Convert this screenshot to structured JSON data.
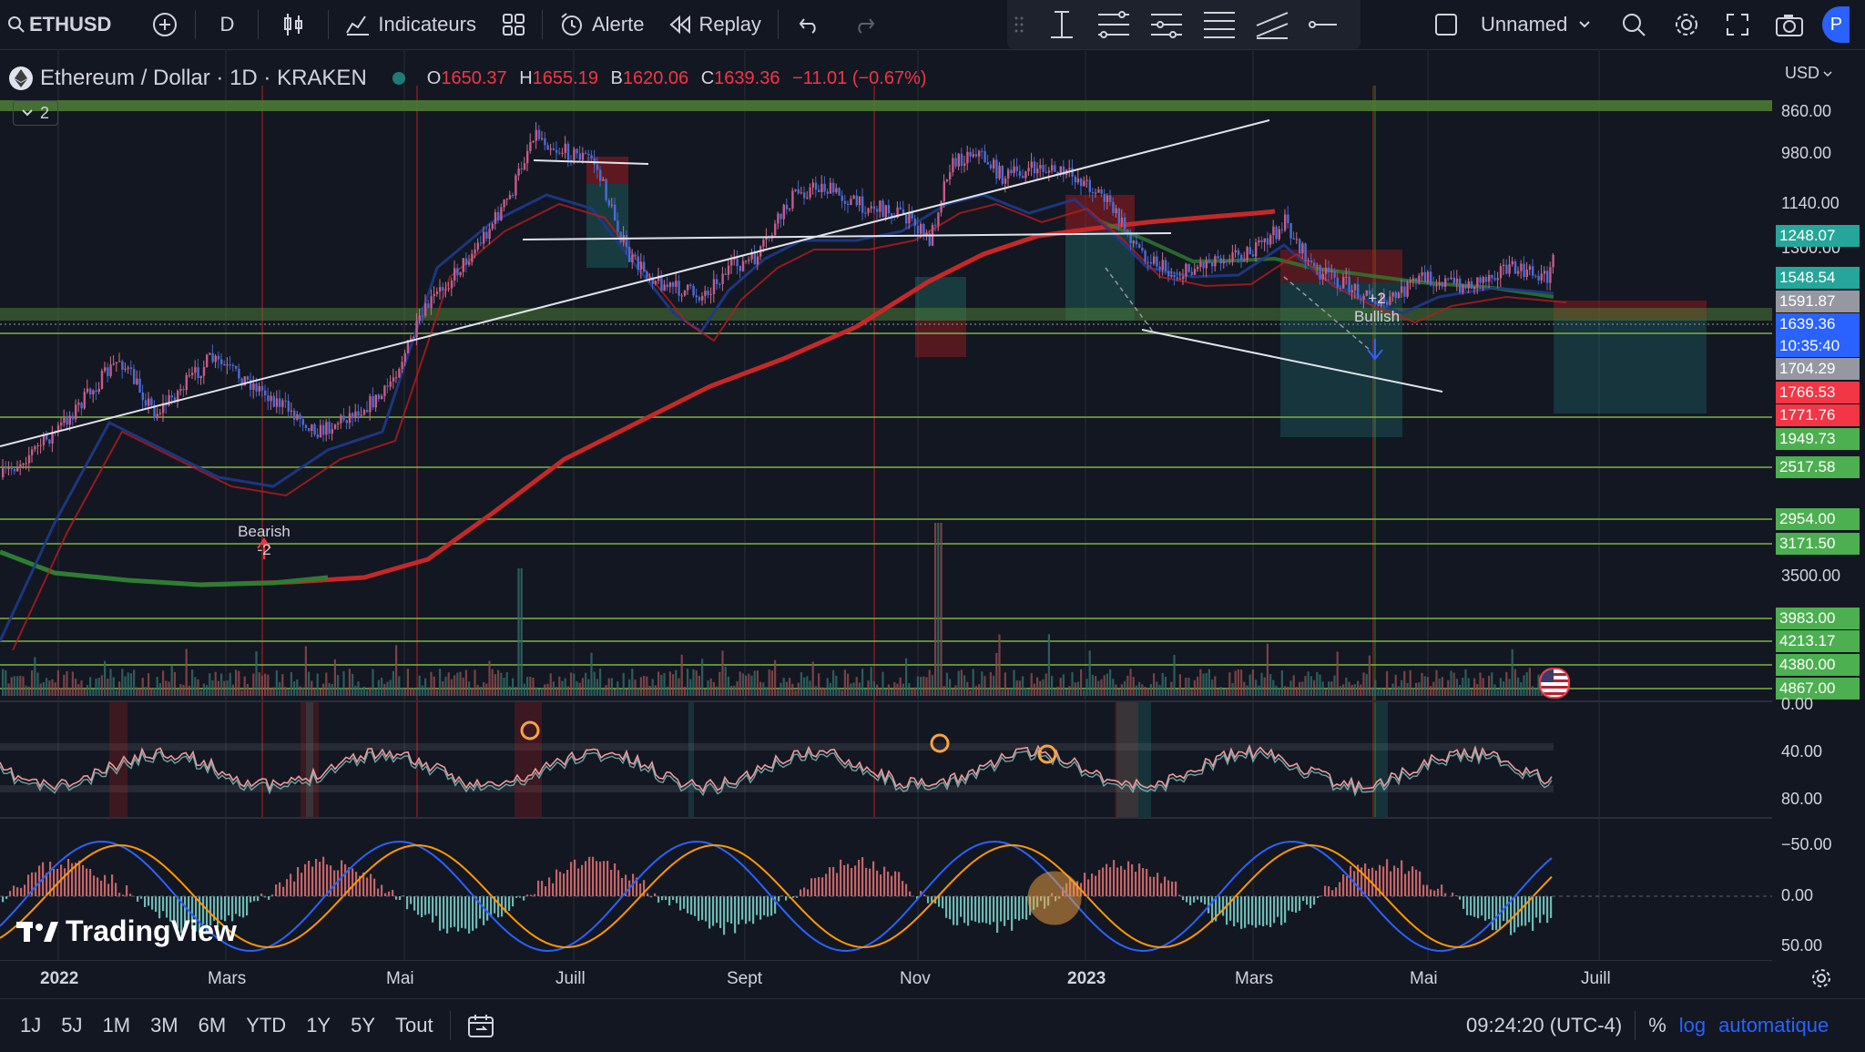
{
  "toolbar": {
    "symbol": "ETHUSD",
    "interval": "D",
    "indicators_label": "Indicateurs",
    "alert_label": "Alerte",
    "replay_label": "Replay",
    "layout_name": "Unnamed",
    "profile_initial": "P"
  },
  "legend": {
    "title": "Ethereum / Dollar · 1D · KRAKEN",
    "o_label": "O",
    "o_val": "1650.37",
    "h_label": "H",
    "h_val": "1655.19",
    "b_label": "B",
    "b_val": "1620.06",
    "c_label": "C",
    "c_val": "1639.36",
    "change": "−11.01 (−0.67%)",
    "collapsed_count": "2"
  },
  "annotations": {
    "bearish_text": "Bearish",
    "bearish_num": "-2",
    "bullish_num": "+2",
    "bullish_text": "Bullish"
  },
  "price_axis": {
    "currency": "USD",
    "plain_labels": [
      "860.00",
      "980.00",
      "1140.00",
      "1300.00",
      "3500.00"
    ],
    "tags": [
      {
        "text": "1248.07",
        "color": "#26a69a"
      },
      {
        "text": "1548.54",
        "color": "#26a69a"
      },
      {
        "text": "1591.87",
        "color": "#9598a1"
      },
      {
        "text": "1639.36",
        "color": "#2962ff"
      },
      {
        "text": "10:35:40",
        "color": "#2962ff"
      },
      {
        "text": "1704.29",
        "color": "#9598a1"
      },
      {
        "text": "1766.53",
        "color": "#f23645"
      },
      {
        "text": "1771.76",
        "color": "#f23645"
      },
      {
        "text": "1949.73",
        "color": "#4caf50"
      },
      {
        "text": "2517.58",
        "color": "#4caf50"
      },
      {
        "text": "2954.00",
        "color": "#4caf50"
      },
      {
        "text": "3171.50",
        "color": "#4caf50"
      },
      {
        "text": "3983.00",
        "color": "#4caf50"
      },
      {
        "text": "4213.17",
        "color": "#4caf50"
      },
      {
        "text": "4380.00",
        "color": "#4caf50"
      },
      {
        "text": "4867.00",
        "color": "#4caf50"
      }
    ],
    "rsi_labels": [
      "0.00",
      "40.00",
      "80.00"
    ],
    "macd_labels": [
      "−50.00",
      "0.00",
      "50.00"
    ]
  },
  "time_axis": [
    "2022",
    "Mars",
    "Mai",
    "Juill",
    "Sept",
    "Nov",
    "2023",
    "Mars",
    "Mai",
    "Juill"
  ],
  "ranges": [
    "1J",
    "5J",
    "1M",
    "3M",
    "6M",
    "YTD",
    "1Y",
    "5Y",
    "Tout"
  ],
  "status": {
    "clock": "09:24:20 (UTC-4)",
    "percent": "%",
    "log": "log",
    "auto": "automatique"
  },
  "brand": "TradingView",
  "chart_data": {
    "type": "candlestick",
    "symbol": "ETHUSD",
    "exchange": "KRAKEN",
    "interval": "1D",
    "ohlc_last": {
      "open": 1650.37,
      "high": 1655.19,
      "low": 1620.06,
      "close": 1639.36
    },
    "change": -11.01,
    "change_pct": -0.67,
    "y_scale": "inverted",
    "y_tick_labels": [
      860,
      980,
      1140,
      1300,
      3500
    ],
    "horizontal_levels": [
      1248.07,
      1548.54,
      1591.87,
      1639.36,
      1704.29,
      1766.53,
      1771.76,
      1949.73,
      2517.58,
      2954.0,
      3171.5,
      3983.0,
      4213.17,
      4380.0,
      4867.0
    ],
    "x_tick_labels": [
      "2022",
      "Mars",
      "Mai",
      "Juill",
      "Sept",
      "Nov",
      "2023",
      "Mars",
      "Mai",
      "Juill"
    ],
    "colors": {
      "up": "#ef5350",
      "down": "#26a69a",
      "ma_long": "#c62828",
      "ma_mid": "#2e7d32",
      "ma_short": "#1e3a8a"
    }
  }
}
